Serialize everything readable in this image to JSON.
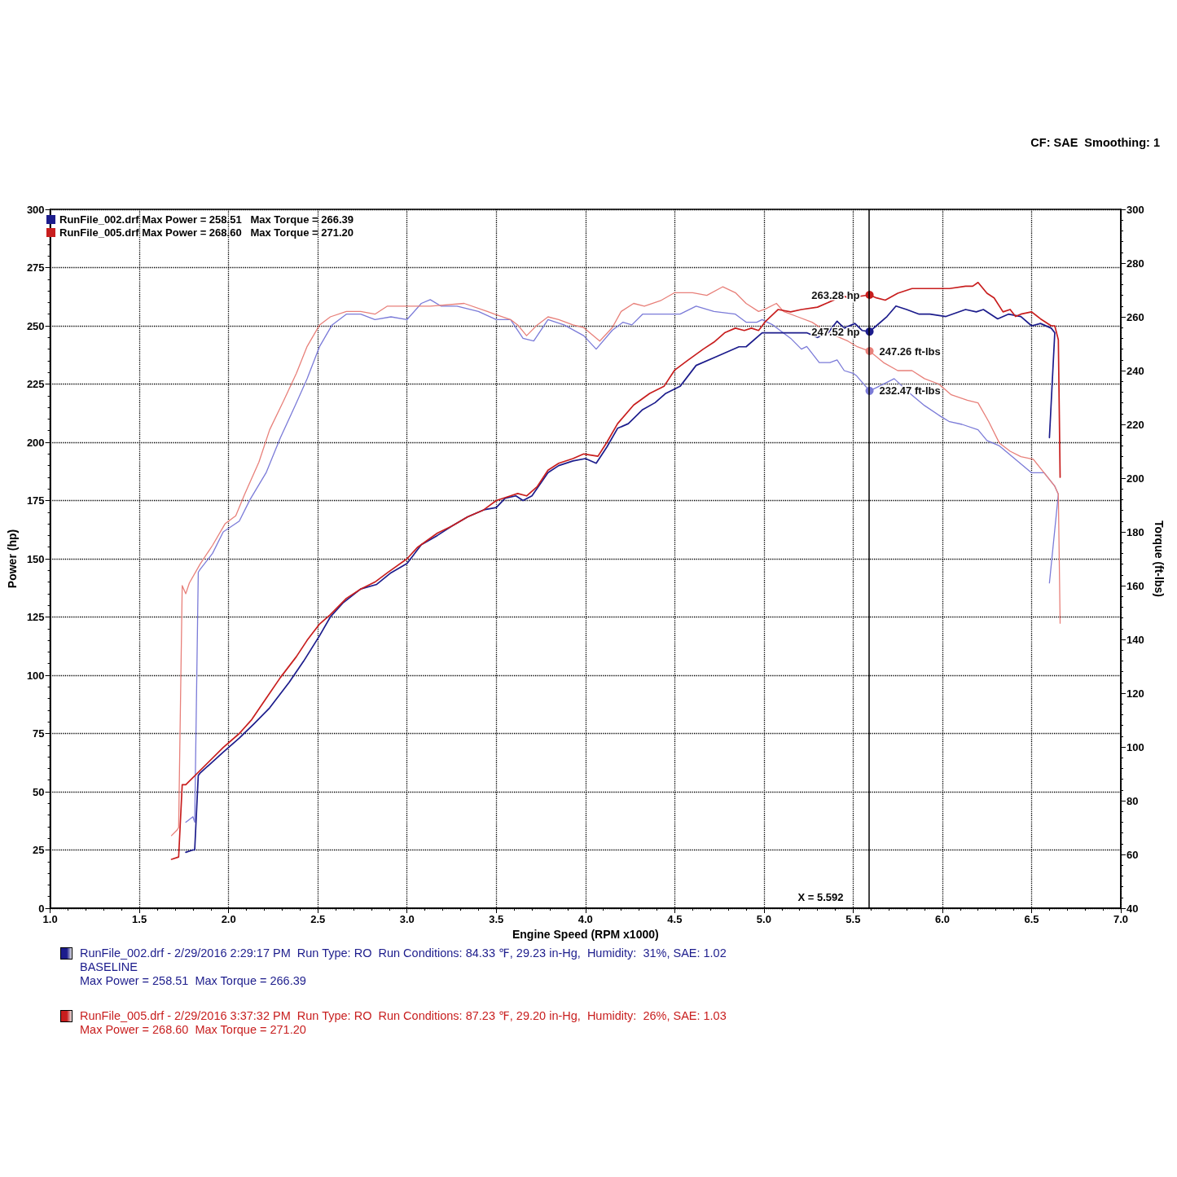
{
  "chart_data": {
    "type": "line",
    "xlabel": "Engine Speed (RPM x1000)",
    "ylabel": "Power (hp)",
    "y2label": "Torque (ft-lbs)",
    "annotations": [
      "CF: SAE  Smoothing: 1",
      "RunFile_002.drf - 2/29/2016 2:29:17 PM  Run Type: RO  Run Conditions: 84.33 ℉, 29.23 in-Hg,  Humidity:  31%, SAE: 1.02\nBASELINE\nMax Power = 258.51  Max Torque = 266.39",
      "RunFile_005.drf - 2/29/2016 3:37:32 PM  Run Type: RO  Run Conditions: 87.23 ℉, 29.20 in-Hg,  Humidity:  26%, SAE: 1.03\nMax Power = 268.60  Max Torque = 271.20"
    ],
    "xlim": [
      1,
      7
    ],
    "xticks": [
      {
        "value": 1,
        "label": "1.0"
      },
      1.5,
      {
        "value": 2,
        "label": "2.0"
      },
      2.5,
      {
        "value": 3,
        "label": "3.0"
      },
      3.5,
      {
        "value": 4,
        "label": "4.0"
      },
      4.5,
      {
        "value": 5,
        "label": "5.0"
      },
      5.5,
      {
        "value": 6,
        "label": "6.0"
      },
      6.5,
      {
        "value": 7,
        "label": "7.0"
      }
    ],
    "ylim": [
      0,
      300
    ],
    "yticks": [
      0,
      25,
      50,
      75,
      100,
      125,
      150,
      175,
      200,
      225,
      250,
      275,
      300
    ],
    "y2lim": [
      40,
      300
    ],
    "y2ticks": [
      40,
      60,
      80,
      100,
      120,
      140,
      160,
      180,
      200,
      220,
      240,
      260,
      280,
      300
    ],
    "grid": true,
    "legend": "top left",
    "ref_lines": [
      {
        "axis": "x",
        "value": 5.592,
        "label": "X = 5.592",
        "color": "#000000"
      }
    ],
    "series": [
      {
        "name": "RunFile_002.drf Max Power = 258.51   Max Torque = 266.39",
        "color": "#1c1c8c",
        "x": [
          1.76,
          1.8,
          1.81,
          1.83,
          1.84,
          1.97,
          2.06,
          2.14,
          2.23,
          2.34,
          2.42,
          2.51,
          2.57,
          2.64,
          2.74,
          2.83,
          2.91,
          3.0,
          3.08,
          3.17,
          3.25,
          3.34,
          3.43,
          3.5,
          3.55,
          3.61,
          3.65,
          3.7,
          3.79,
          3.85,
          3.93,
          4.0,
          4.06,
          4.12,
          4.18,
          4.24,
          4.32,
          4.39,
          4.45,
          4.53,
          4.62,
          4.74,
          4.86,
          4.9,
          4.99,
          5.07,
          5.15,
          5.24,
          5.3,
          5.36,
          5.41,
          5.45,
          5.51,
          5.55,
          5.592,
          5.63,
          5.69,
          5.74,
          5.8,
          5.87,
          5.93,
          6.02,
          6.13,
          6.19,
          6.23,
          6.31,
          6.37,
          6.44,
          6.5,
          6.55,
          6.61,
          6.63,
          6.6
        ],
        "values": [
          24,
          25,
          25,
          57,
          58,
          67,
          73,
          79,
          86,
          97,
          106,
          117,
          125,
          131,
          137,
          139,
          144,
          148,
          156,
          160,
          164,
          168,
          171,
          172,
          176,
          177,
          175,
          177,
          187,
          190,
          192,
          193,
          191,
          198,
          206,
          208,
          214,
          217,
          221,
          224,
          233,
          237,
          241,
          241,
          247,
          247,
          247,
          247,
          245,
          247,
          252,
          249,
          251,
          248,
          247.52,
          250,
          254,
          258.5,
          257,
          255,
          255,
          254,
          257,
          256,
          257,
          253,
          255,
          254,
          250,
          251,
          249,
          247,
          202
        ],
        "value_labels": [
          null,
          null,
          null,
          null,
          null,
          null,
          null,
          null,
          null,
          null,
          null,
          null,
          null,
          null,
          null,
          null,
          null,
          null,
          null,
          null,
          null,
          null,
          null,
          null,
          null,
          null,
          null,
          null,
          null,
          null,
          null,
          null,
          null,
          null,
          null,
          null,
          null,
          null,
          null,
          null,
          null,
          null,
          null,
          null,
          null,
          null,
          null,
          null,
          null,
          null,
          null,
          null,
          null,
          null,
          "247.52 hp",
          null,
          null,
          null,
          null,
          null,
          null,
          null,
          null,
          null,
          null,
          null,
          null,
          null,
          null,
          null,
          null,
          null,
          null
        ]
      },
      {
        "name": "RunFile_005.drf Max Power = 268.60   Max Torque = 271.20",
        "color": "#c81e1e",
        "x": [
          1.68,
          1.72,
          1.74,
          1.76,
          1.97,
          2.06,
          2.13,
          2.21,
          2.29,
          2.38,
          2.44,
          2.51,
          2.57,
          2.66,
          2.74,
          2.82,
          2.89,
          3.0,
          3.06,
          3.17,
          3.25,
          3.34,
          3.43,
          3.5,
          3.58,
          3.62,
          3.67,
          3.73,
          3.79,
          3.85,
          3.93,
          3.99,
          4.07,
          4.12,
          4.18,
          4.27,
          4.36,
          4.44,
          4.5,
          4.57,
          4.66,
          4.72,
          4.78,
          4.84,
          4.89,
          4.93,
          4.97,
          5.01,
          5.08,
          5.15,
          5.21,
          5.3,
          5.39,
          5.43,
          5.48,
          5.592,
          5.63,
          5.68,
          5.75,
          5.83,
          5.9,
          5.96,
          6.04,
          6.13,
          6.17,
          6.2,
          6.25,
          6.29,
          6.34,
          6.38,
          6.41,
          6.44,
          6.5,
          6.55,
          6.61,
          6.63,
          6.65,
          6.66
        ],
        "values": [
          21,
          22,
          53,
          53,
          69,
          75,
          81,
          90,
          99,
          108,
          115,
          122,
          126,
          133,
          137,
          140,
          144,
          150,
          155,
          161,
          164,
          168,
          171,
          175,
          177,
          178,
          177,
          181,
          188,
          191,
          193,
          195,
          194,
          200,
          208,
          216,
          221,
          224,
          231,
          235,
          240,
          243,
          247,
          249,
          248,
          249,
          248,
          252,
          257,
          256,
          257,
          258,
          261,
          263,
          262,
          263.28,
          262,
          261,
          264,
          266,
          266,
          266,
          266,
          267,
          267,
          268.6,
          264,
          262,
          256,
          257,
          254,
          255,
          256,
          253,
          250,
          250,
          244,
          185
        ],
        "value_labels": [
          null,
          null,
          null,
          null,
          null,
          null,
          null,
          null,
          null,
          null,
          null,
          null,
          null,
          null,
          null,
          null,
          null,
          null,
          null,
          null,
          null,
          null,
          null,
          null,
          null,
          null,
          null,
          null,
          null,
          null,
          null,
          null,
          null,
          null,
          null,
          null,
          null,
          null,
          null,
          null,
          null,
          null,
          null,
          null,
          null,
          null,
          null,
          null,
          null,
          null,
          null,
          null,
          null,
          null,
          null,
          "263.28 hp",
          null,
          null,
          null,
          null,
          null,
          null,
          null,
          null,
          null,
          null,
          null,
          null,
          null,
          null,
          null,
          null,
          null,
          null,
          null,
          null,
          null,
          null
        ]
      },
      {
        "color": "#7b7bd8",
        "axis": "y2",
        "x": [
          1.76,
          1.8,
          1.81,
          1.83,
          1.84,
          1.91,
          1.97,
          2.06,
          2.12,
          2.21,
          2.29,
          2.38,
          2.44,
          2.51,
          2.58,
          2.66,
          2.74,
          2.82,
          2.91,
          3.0,
          3.08,
          3.13,
          3.19,
          3.28,
          3.4,
          3.5,
          3.58,
          3.65,
          3.71,
          3.79,
          3.88,
          3.99,
          4.06,
          4.15,
          4.21,
          4.26,
          4.32,
          4.42,
          4.53,
          4.62,
          4.72,
          4.84,
          4.9,
          4.96,
          4.99,
          5.05,
          5.15,
          5.21,
          5.24,
          5.31,
          5.37,
          5.41,
          5.45,
          5.5,
          5.52,
          5.592,
          5.64,
          5.73,
          5.81,
          5.9,
          5.99,
          6.04,
          6.11,
          6.2,
          6.25,
          6.32,
          6.41,
          6.5,
          6.57,
          6.63,
          6.65,
          6.6
        ],
        "values": [
          72,
          74,
          72,
          165,
          166,
          172,
          180,
          184,
          192,
          202,
          215,
          228,
          237,
          249,
          257,
          261,
          261,
          259,
          260,
          259,
          265,
          266.4,
          264,
          264,
          262,
          259,
          259,
          252,
          251,
          259,
          257,
          253,
          248,
          255,
          258,
          257,
          261,
          261,
          261,
          264,
          262,
          261,
          258,
          258,
          259,
          257,
          252,
          248,
          249,
          243,
          243,
          244,
          240,
          239,
          238,
          232.47,
          234,
          237,
          232,
          227,
          223,
          221,
          220,
          218,
          214,
          212,
          207,
          202,
          202,
          197,
          194,
          161
        ],
        "value_labels": [
          null,
          null,
          null,
          null,
          null,
          null,
          null,
          null,
          null,
          null,
          null,
          null,
          null,
          null,
          null,
          null,
          null,
          null,
          null,
          null,
          null,
          null,
          null,
          null,
          null,
          null,
          null,
          null,
          null,
          null,
          null,
          null,
          null,
          null,
          null,
          null,
          null,
          null,
          null,
          null,
          null,
          null,
          null,
          null,
          null,
          null,
          null,
          null,
          null,
          null,
          null,
          null,
          null,
          null,
          null,
          "232.47 ft-lbs",
          null,
          null,
          null,
          null,
          null,
          null,
          null,
          null,
          null,
          null,
          null,
          null,
          null,
          null,
          null,
          null
        ]
      },
      {
        "color": "#e8807a",
        "axis": "y2",
        "x": [
          1.68,
          1.71,
          1.72,
          1.74,
          1.76,
          1.78,
          1.84,
          1.91,
          1.98,
          2.04,
          2.09,
          2.17,
          2.23,
          2.31,
          2.38,
          2.44,
          2.51,
          2.57,
          2.66,
          2.74,
          2.82,
          2.89,
          3.0,
          3.13,
          3.32,
          3.45,
          3.49,
          3.58,
          3.62,
          3.67,
          3.73,
          3.79,
          3.85,
          3.93,
          3.99,
          4.08,
          4.15,
          4.2,
          4.27,
          4.33,
          4.42,
          4.5,
          4.6,
          4.68,
          4.77,
          4.84,
          4.9,
          4.97,
          5.01,
          5.07,
          5.11,
          5.19,
          5.27,
          5.34,
          5.4,
          5.47,
          5.52,
          5.592,
          5.67,
          5.75,
          5.83,
          5.9,
          5.98,
          6.05,
          6.14,
          6.2,
          6.26,
          6.32,
          6.38,
          6.44,
          6.51,
          6.57,
          6.63,
          6.65,
          6.66
        ],
        "values": [
          67,
          69,
          70,
          160,
          157,
          161,
          168,
          175,
          183,
          186,
          194,
          206,
          218,
          229,
          239,
          249,
          257,
          260,
          262,
          262,
          261,
          264,
          264,
          264,
          265,
          262,
          261,
          259,
          257,
          253,
          257,
          260,
          259,
          257,
          256,
          251,
          256,
          262,
          265,
          264,
          266,
          269,
          269,
          268,
          271.2,
          269,
          265,
          262,
          263,
          265,
          262,
          260,
          258,
          255,
          253,
          251,
          249,
          247.26,
          243,
          240,
          240,
          237,
          235,
          231,
          229,
          228,
          221,
          213,
          210,
          208,
          207,
          202,
          197,
          194,
          146
        ],
        "value_labels": [
          null,
          null,
          null,
          null,
          null,
          null,
          null,
          null,
          null,
          null,
          null,
          null,
          null,
          null,
          null,
          null,
          null,
          null,
          null,
          null,
          null,
          null,
          null,
          null,
          null,
          null,
          null,
          null,
          null,
          null,
          null,
          null,
          null,
          null,
          null,
          null,
          null,
          null,
          null,
          null,
          null,
          null,
          null,
          null,
          null,
          null,
          null,
          null,
          null,
          null,
          null,
          null,
          null,
          null,
          null,
          null,
          null,
          "247.26 ft-lbs",
          null,
          null,
          null,
          null,
          null,
          null,
          null,
          null,
          null,
          null,
          null,
          null,
          null,
          null,
          null,
          null,
          null
        ]
      }
    ]
  }
}
